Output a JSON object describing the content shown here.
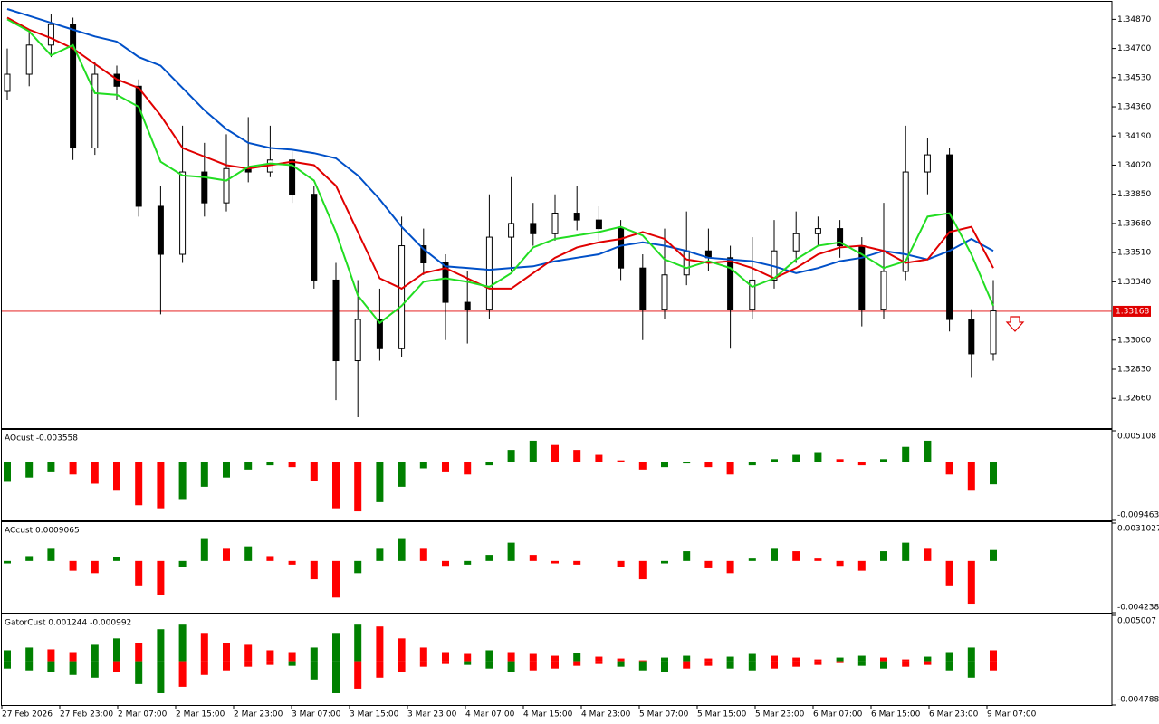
{
  "chart_data": [
    {
      "type": "candlestick",
      "open": [
        1.3445,
        1.3455,
        1.3472,
        1.3484,
        1.3412,
        1.3455,
        1.3448,
        1.3378,
        1.335,
        1.3398,
        1.338,
        1.34,
        1.3398,
        1.3405,
        1.3385,
        1.3335,
        1.3288,
        1.3312,
        1.3295,
        1.3355,
        1.3345,
        1.3322,
        1.3318,
        1.336,
        1.3368,
        1.3362,
        1.3374,
        1.337,
        1.3365,
        1.3342,
        1.3318,
        1.3338,
        1.3352,
        1.3348,
        1.3318,
        1.3335,
        1.3352,
        1.3362,
        1.3365,
        1.3355,
        1.3318,
        1.334,
        1.3398,
        1.3408,
        1.3312,
        1.3292
      ],
      "high": [
        1.347,
        1.348,
        1.349,
        1.3488,
        1.3462,
        1.346,
        1.3452,
        1.339,
        1.3425,
        1.3415,
        1.342,
        1.343,
        1.3425,
        1.341,
        1.339,
        1.3345,
        1.3335,
        1.333,
        1.3372,
        1.3365,
        1.335,
        1.334,
        1.3385,
        1.3395,
        1.338,
        1.3385,
        1.339,
        1.3378,
        1.337,
        1.335,
        1.3365,
        1.3375,
        1.3365,
        1.3355,
        1.336,
        1.337,
        1.3375,
        1.3372,
        1.337,
        1.336,
        1.338,
        1.3425,
        1.3418,
        1.3412,
        1.3318,
        1.3335
      ],
      "low": [
        1.344,
        1.3448,
        1.3465,
        1.3405,
        1.3408,
        1.344,
        1.3372,
        1.3315,
        1.3345,
        1.3372,
        1.3375,
        1.3392,
        1.3395,
        1.338,
        1.333,
        1.3265,
        1.3255,
        1.3288,
        1.329,
        1.3338,
        1.33,
        1.3298,
        1.3312,
        1.334,
        1.3355,
        1.3358,
        1.3364,
        1.3358,
        1.3335,
        1.33,
        1.3312,
        1.3332,
        1.334,
        1.3295,
        1.3312,
        1.333,
        1.3345,
        1.3355,
        1.3348,
        1.3308,
        1.3312,
        1.3335,
        1.3385,
        1.3305,
        1.3278,
        1.3288
      ],
      "close": [
        1.3455,
        1.3472,
        1.3484,
        1.3412,
        1.3455,
        1.3448,
        1.3378,
        1.335,
        1.3398,
        1.338,
        1.34,
        1.3398,
        1.3405,
        1.3385,
        1.3335,
        1.3288,
        1.3312,
        1.3295,
        1.3355,
        1.3345,
        1.3322,
        1.3318,
        1.336,
        1.3368,
        1.3362,
        1.3374,
        1.337,
        1.3365,
        1.3342,
        1.3318,
        1.3338,
        1.3352,
        1.3348,
        1.3318,
        1.3335,
        1.3352,
        1.3362,
        1.3365,
        1.3355,
        1.3318,
        1.334,
        1.3398,
        1.3408,
        1.3312,
        1.3292,
        1.3317
      ],
      "up_color": "#ffffff",
      "down_color": "#000000",
      "lines": [
        {
          "color": "#0050c8",
          "values": [
            1.3493,
            1.3489,
            1.3485,
            1.3481,
            1.3477,
            1.3474,
            1.3465,
            1.346,
            1.3447,
            1.3434,
            1.3423,
            1.3415,
            1.3412,
            1.3411,
            1.3409,
            1.3406,
            1.3396,
            1.3382,
            1.3366,
            1.3353,
            1.3343,
            1.3342,
            1.3341,
            1.3342,
            1.3343,
            1.3346,
            1.3348,
            1.335,
            1.3355,
            1.3357,
            1.3355,
            1.3352,
            1.3348,
            1.3347,
            1.3346,
            1.3343,
            1.3339,
            1.3342,
            1.3346,
            1.3348,
            1.3352,
            1.335,
            1.3347,
            1.3352,
            1.3359,
            1.3352
          ]
        },
        {
          "color": "#e00000",
          "values": [
            1.3488,
            1.3481,
            1.3476,
            1.347,
            1.3461,
            1.3452,
            1.3447,
            1.3431,
            1.3412,
            1.3407,
            1.3402,
            1.34,
            1.3402,
            1.3404,
            1.3402,
            1.339,
            1.3363,
            1.3336,
            1.333,
            1.3339,
            1.3342,
            1.3336,
            1.333,
            1.333,
            1.3339,
            1.3348,
            1.3354,
            1.3357,
            1.3359,
            1.3363,
            1.3359,
            1.3347,
            1.3345,
            1.3346,
            1.3342,
            1.3336,
            1.3342,
            1.335,
            1.3354,
            1.3355,
            1.3352,
            1.3345,
            1.3347,
            1.3363,
            1.3366,
            1.3342
          ]
        },
        {
          "color": "#22dd22",
          "values": [
            1.3487,
            1.348,
            1.3466,
            1.3472,
            1.3444,
            1.3443,
            1.3436,
            1.3404,
            1.3396,
            1.3395,
            1.3393,
            1.3401,
            1.3403,
            1.3402,
            1.3393,
            1.3363,
            1.3326,
            1.331,
            1.332,
            1.3334,
            1.3336,
            1.3334,
            1.3331,
            1.3339,
            1.3354,
            1.3359,
            1.3361,
            1.3363,
            1.3366,
            1.3361,
            1.3347,
            1.3342,
            1.3346,
            1.3342,
            1.3331,
            1.3336,
            1.3347,
            1.3355,
            1.3357,
            1.335,
            1.3342,
            1.3346,
            1.3372,
            1.3374,
            1.335,
            1.332
          ]
        }
      ],
      "ylim": [
        1.32487,
        1.34967
      ],
      "yticks": [
        {
          "value": 1.3487,
          "label": "1.34870"
        },
        {
          "value": 1.347,
          "label": "1.34700"
        },
        {
          "value": 1.3453,
          "label": "1.34530"
        },
        {
          "value": 1.3436,
          "label": "1.34360"
        },
        {
          "value": 1.3419,
          "label": "1.34190"
        },
        {
          "value": 1.3402,
          "label": "1.34020"
        },
        {
          "value": 1.3385,
          "label": "1.33850"
        },
        {
          "value": 1.3368,
          "label": "1.33680"
        },
        {
          "value": 1.3351,
          "label": "1.33510"
        },
        {
          "value": 1.3334,
          "label": "1.33340"
        },
        {
          "value": 1.33,
          "label": "1.33000"
        },
        {
          "value": 1.3283,
          "label": "1.32830"
        },
        {
          "value": 1.3266,
          "label": "1.32660"
        }
      ],
      "current_price": 1.33168,
      "current_price_color": "#e00000",
      "time_labels": [
        "27 Feb 2026",
        "27 Feb 23:00",
        "2 Mar 07:00",
        "2 Mar 15:00",
        "2 Mar 23:00",
        "3 Mar 07:00",
        "3 Mar 15:00",
        "3 Mar 23:00",
        "4 Mar 07:00",
        "4 Mar 15:00",
        "4 Mar 23:00",
        "5 Mar 07:00",
        "5 Mar 15:00",
        "5 Mar 23:00",
        "6 Mar 07:00",
        "6 Mar 15:00",
        "6 Mar 23:00",
        "9 Mar 07:00"
      ]
    },
    {
      "type": "histogram",
      "title": "AOcust -0.003558",
      "values": [
        -0.0032,
        -0.0025,
        -0.0015,
        -0.002,
        -0.0035,
        -0.0045,
        -0.007,
        -0.0075,
        -0.006,
        -0.004,
        -0.0025,
        -0.0012,
        -0.0005,
        -0.0008,
        -0.003,
        -0.0075,
        -0.008,
        -0.0065,
        -0.004,
        -0.001,
        -0.0015,
        -0.002,
        -0.0005,
        0.002,
        0.0035,
        0.0028,
        0.002,
        0.0012,
        0.0003,
        -0.0012,
        -0.0008,
        -0.0002,
        -0.0008,
        -0.002,
        -0.0005,
        0.0005,
        0.0012,
        0.0015,
        0.0005,
        -0.0005,
        0.0005,
        0.0025,
        0.0035,
        -0.002,
        -0.0045,
        -0.0036
      ],
      "ylim": [
        -0.009463,
        0.005108
      ],
      "yticks": [
        0.005108,
        -0.009463
      ],
      "up_color": "#008000",
      "down_color": "#ff0000"
    },
    {
      "type": "histogram",
      "title": "ACcust 0.0009065",
      "values": [
        -0.0002,
        0.0004,
        0.001,
        -0.0008,
        -0.001,
        0.0003,
        -0.002,
        -0.0028,
        -0.0005,
        0.0018,
        0.001,
        0.0012,
        0.0004,
        -0.0003,
        -0.0015,
        -0.003,
        -0.001,
        0.001,
        0.0018,
        0.001,
        -0.0004,
        -0.0003,
        0.0005,
        0.0015,
        0.0005,
        -0.0002,
        -0.0003,
        0,
        -0.0005,
        -0.0015,
        -0.0002,
        0.0008,
        -0.0006,
        -0.001,
        0.0002,
        0.001,
        0.0008,
        0.0002,
        -0.0004,
        -0.0008,
        0.0008,
        0.0015,
        0.001,
        -0.002,
        -0.0035,
        0.0009
      ],
      "ylim": [
        -0.0042382,
        0.0031027
      ],
      "yticks": [
        0.0031027,
        -0.0042382
      ],
      "up_color": "#008000",
      "down_color": "#ff0000"
    },
    {
      "type": "gator",
      "title": "GatorCust 0.001244 -0.000992",
      "upper": [
        0.0012,
        0.0015,
        0.0013,
        0.001,
        0.0018,
        0.0025,
        0.002,
        0.0035,
        0.004,
        0.003,
        0.002,
        0.0018,
        0.0012,
        0.001,
        0.0015,
        0.003,
        0.004,
        0.0038,
        0.0025,
        0.0015,
        0.001,
        0.0008,
        0.0012,
        0.001,
        0.0008,
        0.0006,
        0.0009,
        0.0005,
        0.0003,
        0.0001,
        0.0004,
        0.0006,
        0.0003,
        0.0005,
        0.0008,
        0.0006,
        0.0004,
        0.0002,
        0.0004,
        0.0006,
        0.0004,
        0.0002,
        0.0005,
        0.001,
        0.0015,
        0.0012
      ],
      "lower": [
        -0.0008,
        -0.001,
        -0.0012,
        -0.0015,
        -0.0018,
        -0.0012,
        -0.0025,
        -0.0035,
        -0.0028,
        -0.0015,
        -0.001,
        -0.0006,
        -0.0004,
        -0.0005,
        -0.002,
        -0.0035,
        -0.003,
        -0.0018,
        -0.0012,
        -0.0006,
        -0.0003,
        -0.0004,
        -0.0008,
        -0.0012,
        -0.001,
        -0.0008,
        -0.0005,
        -0.0003,
        -0.0006,
        -0.001,
        -0.0012,
        -0.0008,
        -0.0005,
        -0.0008,
        -0.001,
        -0.0008,
        -0.0006,
        -0.0004,
        -0.0002,
        -0.0005,
        -0.0008,
        -0.0006,
        -0.0004,
        -0.001,
        -0.0018,
        -0.001
      ],
      "ylim": [
        -0.004788,
        0.005007
      ],
      "yticks": [
        0.005007,
        -0.004788
      ],
      "up_color": "#008000",
      "down_color": "#ff0000"
    }
  ]
}
